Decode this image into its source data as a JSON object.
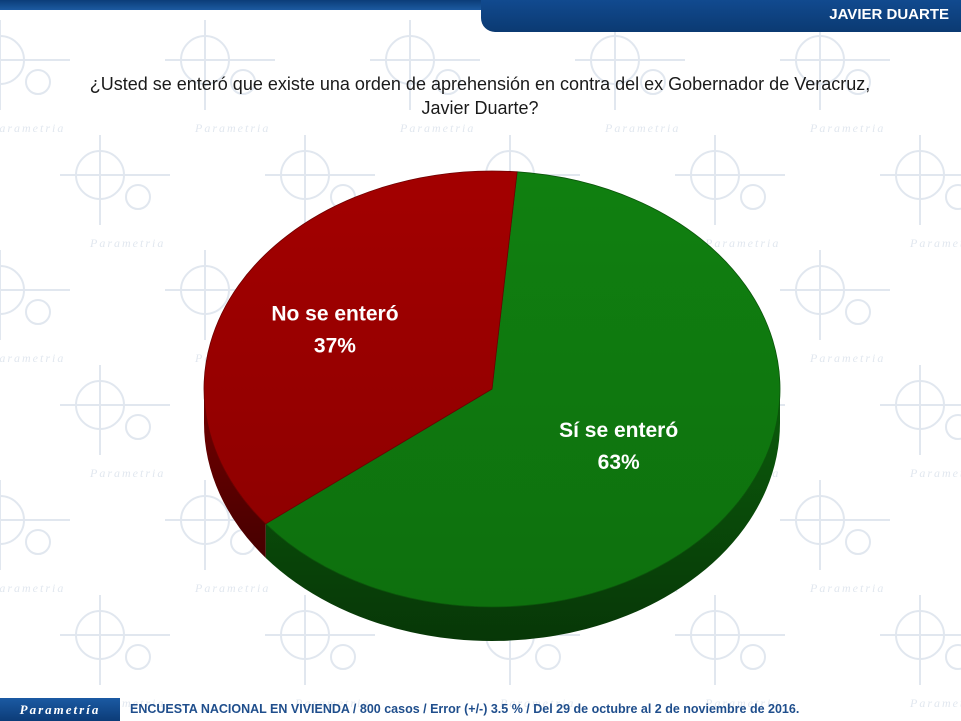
{
  "header": {
    "title": "JAVIER DUARTE"
  },
  "question": {
    "line1": "¿Usted se enteró que existe una orden de aprehensión en contra del ex Gobernador de Veracruz,",
    "line2": "Javier Duarte?"
  },
  "chart_data": {
    "type": "pie",
    "title": "",
    "slices": [
      {
        "label": "Sí se enteró",
        "value": 63,
        "display": "63%",
        "color": "#0f7a0f"
      },
      {
        "label": "No se enteró",
        "value": 37,
        "display": "37%",
        "color": "#9b0000"
      }
    ]
  },
  "watermark": {
    "text": "Parametria"
  },
  "footer": {
    "logo": "Parametría",
    "note": "ENCUESTA NACIONAL EN VIVIENDA / 800 casos / Error (+/-) 3.5 % / Del 29 de octubre al 2 de noviembre de 2016."
  }
}
